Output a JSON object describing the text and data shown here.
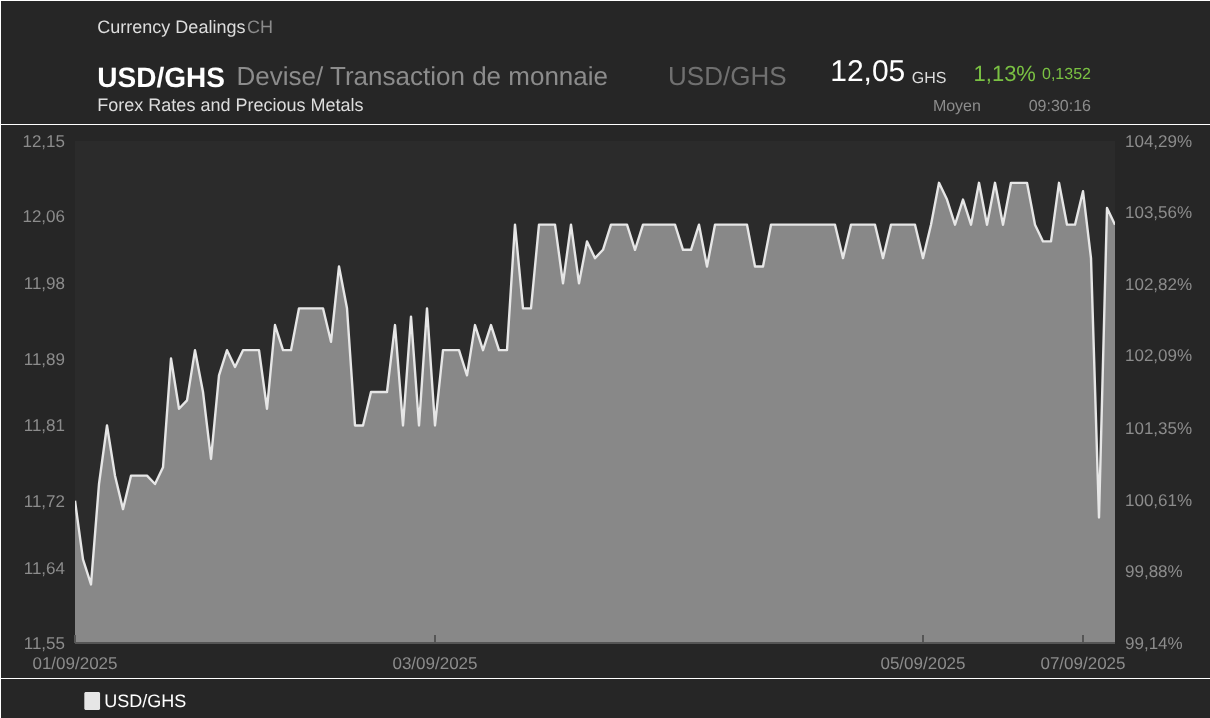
{
  "chart_data": {
    "type": "area",
    "title": "USD/GHS",
    "subtitle": "Devise/ Transaction de monnaie",
    "annotations": [
      "Currency Dealings",
      "CH",
      "USD/GHS",
      "Forex Rates and Precious Metals",
      "12,05",
      "GHS",
      "1,13%",
      "0,1352",
      "Moyen",
      "09:30:16"
    ],
    "categories": [
      "01/09/2025",
      null,
      null,
      null,
      null,
      null,
      null,
      null,
      null,
      null,
      null,
      null,
      null,
      null,
      null,
      null,
      null,
      null,
      null,
      null,
      null,
      null,
      null,
      null,
      null,
      null,
      null,
      null,
      null,
      null,
      null,
      null,
      null,
      null,
      null,
      null,
      null,
      null,
      null,
      null,
      null,
      null,
      null,
      null,
      null,
      "03/09/2025",
      null,
      null,
      null,
      null,
      null,
      null,
      null,
      null,
      null,
      null,
      null,
      null,
      null,
      null,
      null,
      null,
      null,
      null,
      null,
      null,
      null,
      null,
      null,
      null,
      null,
      null,
      null,
      null,
      null,
      null,
      null,
      null,
      null,
      null,
      null,
      null,
      null,
      null,
      null,
      null,
      null,
      null,
      null,
      null,
      null,
      null,
      null,
      null,
      null,
      null,
      null,
      null,
      null,
      null,
      null,
      null,
      null,
      null,
      null,
      null,
      "05/09/2025",
      null,
      null,
      null,
      null,
      null,
      null,
      null,
      null,
      null,
      null,
      null,
      null,
      null,
      null,
      null,
      null,
      null,
      null,
      null,
      "07/09/2025",
      null,
      null,
      null,
      null
    ],
    "series": [
      {
        "name": "USD/GHS",
        "color": "#e6e6e6",
        "values": [
          11.72,
          11.65,
          11.62,
          11.74,
          11.81,
          11.75,
          11.71,
          11.75,
          11.75,
          11.75,
          11.74,
          11.76,
          11.89,
          11.83,
          11.84,
          11.9,
          11.85,
          11.77,
          11.87,
          11.9,
          11.88,
          11.9,
          11.9,
          11.9,
          11.83,
          11.93,
          11.9,
          11.9,
          11.95,
          11.95,
          11.95,
          11.95,
          11.91,
          12.0,
          11.95,
          11.81,
          11.81,
          11.85,
          11.85,
          11.85,
          11.93,
          11.81,
          11.94,
          11.81,
          11.95,
          11.81,
          11.9,
          11.9,
          11.9,
          11.87,
          11.93,
          11.9,
          11.93,
          11.9,
          11.9,
          12.05,
          11.95,
          11.95,
          12.05,
          12.05,
          12.05,
          11.98,
          12.05,
          11.98,
          12.03,
          12.01,
          12.02,
          12.05,
          12.05,
          12.05,
          12.02,
          12.05,
          12.05,
          12.05,
          12.05,
          12.05,
          12.02,
          12.02,
          12.05,
          12.0,
          12.05,
          12.05,
          12.05,
          12.05,
          12.05,
          12.0,
          12.0,
          12.05,
          12.05,
          12.05,
          12.05,
          12.05,
          12.05,
          12.05,
          12.05,
          12.05,
          12.01,
          12.05,
          12.05,
          12.05,
          12.05,
          12.01,
          12.05,
          12.05,
          12.05,
          12.05,
          12.01,
          12.05,
          12.1,
          12.08,
          12.05,
          12.08,
          12.05,
          12.1,
          12.05,
          12.1,
          12.05,
          12.1,
          12.1,
          12.1,
          12.05,
          12.03,
          12.03,
          12.1,
          12.05,
          12.05,
          12.09,
          12.01,
          11.7,
          12.07,
          12.05
        ]
      }
    ],
    "ylim": [
      11.55,
      12.15
    ],
    "yticks": [
      {
        "value": 11.55,
        "label": "11,55"
      },
      {
        "value": 11.64,
        "label": "11,64"
      },
      {
        "value": 11.72,
        "label": "11,72"
      },
      {
        "value": 11.81,
        "label": "11,81"
      },
      {
        "value": 11.89,
        "label": "11,89"
      },
      {
        "value": 11.98,
        "label": "11,98"
      },
      {
        "value": 12.06,
        "label": "12,06"
      },
      {
        "value": 12.15,
        "label": "12,15"
      }
    ],
    "y2lim": [
      99.14,
      104.29
    ],
    "y2ticks": [
      {
        "value": 99.14,
        "label": "99,14%"
      },
      {
        "value": 99.88,
        "label": "99,88%"
      },
      {
        "value": 100.61,
        "label": "100,61%"
      },
      {
        "value": 101.35,
        "label": "101,35%"
      },
      {
        "value": 102.09,
        "label": "102,09%"
      },
      {
        "value": 102.82,
        "label": "102,82%"
      },
      {
        "value": 103.56,
        "label": "103,56%"
      },
      {
        "value": 104.29,
        "label": "104,29%"
      }
    ],
    "legend": "bottom left"
  }
}
